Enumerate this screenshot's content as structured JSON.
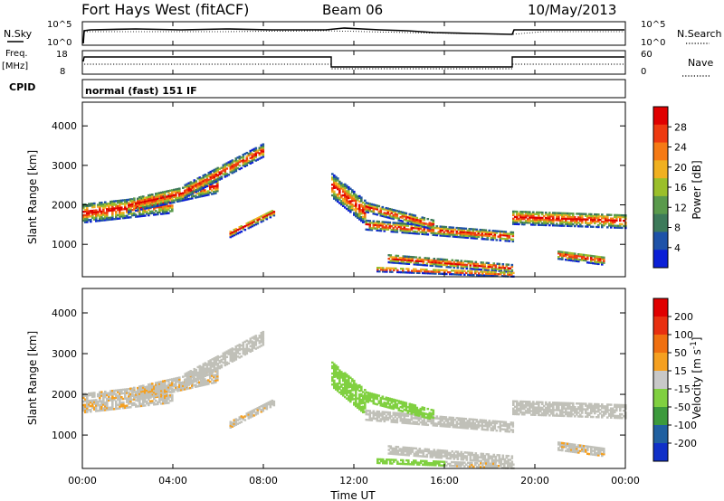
{
  "header": {
    "station": "Fort Hays West (fitACF)",
    "beam": "Beam 06",
    "date": "10/May/2013"
  },
  "summary": {
    "nsky_label": "N.Sky",
    "nsearch_label": "N.Search",
    "freq_label_1": "Freq.",
    "freq_label_2": "[MHz]",
    "nave_label": "Nave",
    "cpid_label": "CPID",
    "cpid_value": "normal (fast) 151 IF",
    "noise_ticks": [
      "10^5",
      "10^0"
    ],
    "freq_ticks": [
      "18",
      "8"
    ],
    "nave_ticks": [
      "60",
      "0"
    ]
  },
  "chart_data": [
    {
      "type": "heatmap",
      "name": "power",
      "xlabel": "Time UT",
      "ylabel": "Slant Range [km]",
      "xticks": [
        "00:00",
        "04:00",
        "08:00",
        "12:00",
        "16:00",
        "20:00",
        "00:00"
      ],
      "xlim_hours": [
        0,
        24
      ],
      "yticks": [
        1000,
        2000,
        3000,
        4000
      ],
      "ylim": [
        180,
        4600
      ],
      "colorbar_label": "Power [dB]",
      "colorbar_ticks": [
        "28",
        "24",
        "20",
        "16",
        "12",
        "8",
        "4"
      ],
      "colorbar_colors": [
        "#0b1fd6",
        "#1e52a8",
        "#3d7a5a",
        "#5a9a4c",
        "#9bbf2a",
        "#f0b020",
        "#f57a14",
        "#ee3a10",
        "#e00000"
      ]
    },
    {
      "type": "heatmap",
      "name": "velocity",
      "xlabel": "Time UT",
      "ylabel": "Slant Range [km]",
      "xticks": [
        "00:00",
        "04:00",
        "08:00",
        "12:00",
        "16:00",
        "20:00",
        "00:00"
      ],
      "xlim_hours": [
        0,
        24
      ],
      "yticks": [
        1000,
        2000,
        3000,
        4000
      ],
      "ylim": [
        180,
        4600
      ],
      "colorbar_label": "Velocity [m s-1]",
      "colorbar_ticks": [
        "200",
        "100",
        "50",
        "15",
        "-15",
        "-50",
        "-100",
        "-200"
      ],
      "colorbar_colors": [
        "#1030c8",
        "#2060a0",
        "#3c9a3c",
        "#80d040",
        "#c8c8c8",
        "#f5a020",
        "#f07010",
        "#e83010",
        "#e00000"
      ],
      "ground_scatter_color": "#c0c0b8"
    }
  ]
}
